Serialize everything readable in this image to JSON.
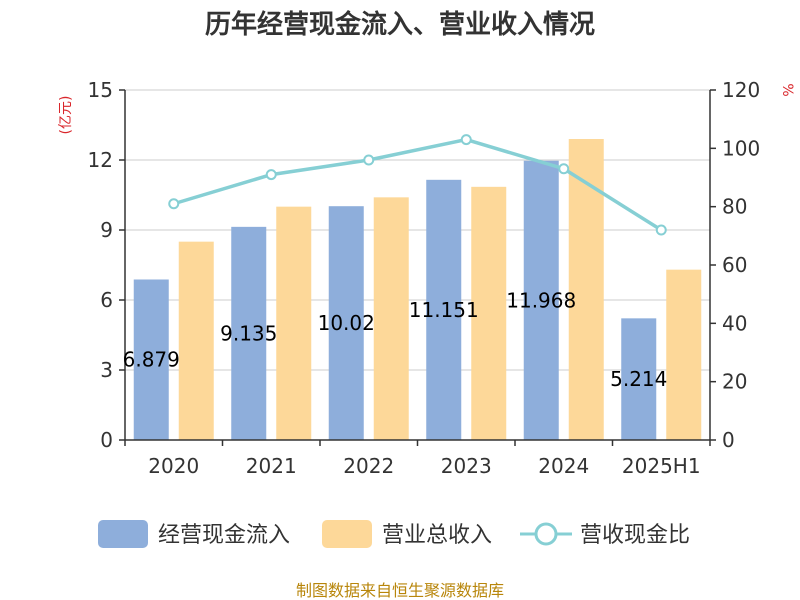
{
  "chart_data": {
    "type": "bar",
    "title": "历年经营现金流入、营业收入情况",
    "categories": [
      "2020",
      "2021",
      "2022",
      "2023",
      "2024",
      "2025H1"
    ],
    "left_axis": {
      "unit": "(亿元)",
      "ylim": [
        0,
        15
      ],
      "ticks": [
        "0",
        "3",
        "6",
        "9",
        "12",
        "15"
      ]
    },
    "right_axis": {
      "unit": "%",
      "ylim": [
        0,
        120
      ],
      "ticks": [
        "0",
        "20",
        "40",
        "60",
        "80",
        "100",
        "120"
      ]
    },
    "grid": true,
    "legend_position": "bottom",
    "series": [
      {
        "name": "经营现金流入",
        "kind": "bar",
        "axis": "left",
        "color": "#8eaedb",
        "values": [
          6.879,
          9.135,
          10.02,
          11.151,
          11.968,
          5.214
        ],
        "labels": [
          "6.879",
          "9.135",
          "10.02",
          "11.151",
          "11.968",
          "5.214"
        ]
      },
      {
        "name": "营业总收入",
        "kind": "bar",
        "axis": "left",
        "color": "#fdd899",
        "values": [
          8.5,
          10.0,
          10.4,
          10.85,
          12.9,
          7.3
        ]
      },
      {
        "name": "营收现金比",
        "kind": "line",
        "axis": "right",
        "color": "#86cfd4",
        "values": [
          81,
          91,
          96,
          103,
          93,
          72
        ]
      }
    ]
  },
  "source": "制图数据来自恒生聚源数据库"
}
